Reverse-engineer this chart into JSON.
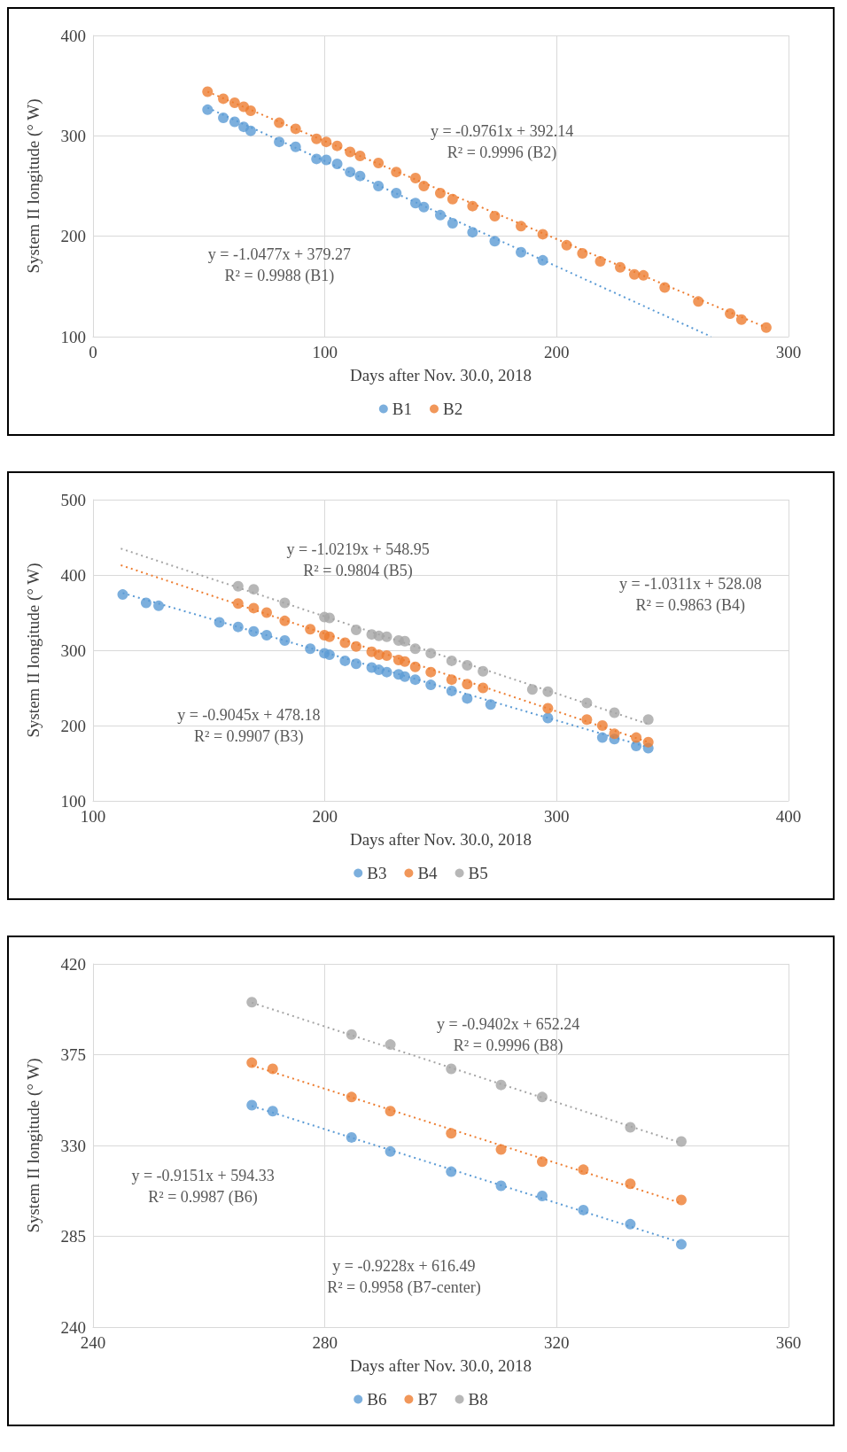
{
  "chart_data": [
    {
      "type": "scatter",
      "xlabel": "Days after Nov. 30.0, 2018",
      "ylabel": "System II longitude (° W)",
      "xlim": [
        0,
        300
      ],
      "xticks": [
        0,
        100,
        200,
        300
      ],
      "ylim": [
        100,
        400
      ],
      "yticks": [
        100,
        200,
        300,
        400
      ],
      "grid": true,
      "legend": "bottom",
      "marker": "circle",
      "series": [
        {
          "name": "B1",
          "color": "#5b9bd5",
          "x": [
            49.4,
            56.2,
            61.1,
            65,
            68,
            80.3,
            87.4,
            96.4,
            100.6,
            105.3,
            110.9,
            115.2,
            123.1,
            130.8,
            139.1,
            142.7,
            149.8,
            155.1,
            163.7,
            173.3,
            184.6,
            194
          ],
          "values": [
            326,
            318,
            314,
            309,
            305,
            294,
            289,
            277,
            276,
            272,
            264,
            260,
            250,
            243,
            233,
            229,
            221,
            213,
            204,
            195,
            184,
            176
          ]
        },
        {
          "name": "B2",
          "color": "#ed7d31",
          "x": [
            49.4,
            56.2,
            61.1,
            65,
            68,
            80.3,
            87.4,
            96.4,
            100.6,
            105.3,
            110.9,
            115.2,
            123.1,
            130.8,
            139.1,
            142.7,
            149.8,
            155.1,
            163.7,
            173.3,
            184.6,
            194,
            204.3,
            211.1,
            218.8,
            227.4,
            233.5,
            237.4,
            246.6,
            261.1,
            274.8,
            279.7,
            290.4
          ],
          "values": [
            344,
            337,
            333,
            329,
            325,
            313,
            307,
            297,
            294,
            290,
            284,
            280,
            273,
            264,
            258,
            250,
            243,
            237,
            230,
            220,
            210,
            202,
            191,
            183,
            175,
            169,
            162,
            161,
            149,
            135,
            123,
            117,
            109
          ]
        },
        {
          "type": "line",
          "color": "#5b9bd5",
          "line_style": "dotted",
          "marker": "none",
          "x": [
            49.4,
            266.6
          ],
          "values": [
            328,
            100
          ]
        },
        {
          "type": "line",
          "color": "#ed7d31",
          "line_style": "dotted",
          "marker": "none",
          "x": [
            49.4,
            290.4
          ],
          "values": [
            344,
            109
          ]
        }
      ],
      "annotations": [
        "y = -0.9761x + 392.14\nR² = 0.9996 (B2)",
        "y = -1.0477x + 379.27\nR² = 0.9988 (B1)"
      ]
    },
    {
      "type": "scatter",
      "xlabel": "Days after Nov. 30.0, 2018",
      "ylabel": "System II longitude (° W)",
      "xlim": [
        100,
        400
      ],
      "xticks": [
        100,
        200,
        300,
        400
      ],
      "ylim": [
        100,
        500
      ],
      "yticks": [
        100,
        200,
        300,
        400,
        500
      ],
      "grid": true,
      "legend": "bottom",
      "marker": "circle",
      "series": [
        {
          "name": "B3",
          "color": "#5b9bd5",
          "x": [
            112.8,
            122.9,
            128.3,
            154.5,
            162.6,
            169.3,
            174.9,
            182.7,
            193.7,
            199.8,
            202,
            208.7,
            213.5,
            220.2,
            223.3,
            226.7,
            231.8,
            234.5,
            239,
            245.7,
            254.7,
            261.4,
            271.5,
            296.2,
            319.7,
            324.9,
            334.3,
            339.5
          ],
          "values": [
            374,
            363,
            359,
            337,
            331,
            325,
            320,
            313,
            302,
            296,
            294,
            286,
            282,
            277,
            274,
            271,
            268,
            265,
            261,
            254,
            246,
            236,
            228,
            210,
            184,
            182,
            173,
            170
          ]
        },
        {
          "name": "B4",
          "color": "#ed7d31",
          "x": [
            162.6,
            169.3,
            174.9,
            182.7,
            193.7,
            199.8,
            202,
            208.7,
            213.5,
            220.2,
            223.3,
            226.7,
            231.8,
            234.5,
            239,
            245.7,
            254.7,
            261.4,
            268.2,
            296.2,
            313,
            319.7,
            324.9,
            334.3,
            339.5
          ],
          "values": [
            362,
            356,
            350,
            339,
            328,
            320,
            318,
            310,
            305,
            298,
            294,
            293,
            287,
            285,
            278,
            271,
            261,
            255,
            250,
            223,
            208,
            200,
            189,
            184,
            178
          ]
        },
        {
          "name": "B5",
          "color": "#a5a5a5",
          "x": [
            162.6,
            169.3,
            182.7,
            199.8,
            202,
            213.5,
            220.2,
            223.3,
            226.7,
            231.8,
            234.5,
            239,
            245.7,
            254.7,
            261.4,
            268.2,
            289.5,
            296.2,
            313,
            324.9,
            339.5
          ],
          "values": [
            385,
            381,
            363,
            344,
            343,
            327,
            321,
            319,
            318,
            313,
            312,
            302,
            296,
            286,
            280,
            272,
            248,
            245,
            230,
            217,
            208
          ]
        },
        {
          "type": "line",
          "color": "#5b9bd5",
          "line_style": "dotted",
          "marker": "none",
          "x": [
            112.8,
            339.5
          ],
          "values": [
            376,
            171
          ]
        },
        {
          "type": "line",
          "color": "#ed7d31",
          "line_style": "dotted",
          "marker": "none",
          "x": [
            112,
            339.5
          ],
          "values": [
            413,
            178
          ]
        },
        {
          "type": "line",
          "color": "#a5a5a5",
          "line_style": "dotted",
          "marker": "none",
          "x": [
            112,
            339.5
          ],
          "values": [
            435,
            202
          ]
        }
      ],
      "annotations": [
        "y = -1.0219x + 548.95\nR² = 0.9804 (B5)",
        "y = -1.0311x + 528.08\nR² = 0.9863 (B4)",
        "y = -0.9045x + 478.18\nR² = 0.9907 (B3)"
      ]
    },
    {
      "type": "scatter",
      "xlabel": "Days after Nov. 30.0, 2018",
      "ylabel": "System II longitude (° W)",
      "xlim": [
        240,
        360
      ],
      "xticks": [
        240,
        280,
        320,
        360
      ],
      "ylim": [
        240,
        420
      ],
      "yticks": [
        240,
        285,
        330,
        375,
        420
      ],
      "grid": true,
      "legend": "bottom",
      "marker": "circle",
      "series": [
        {
          "name": "B6",
          "color": "#5b9bd5",
          "x": [
            267.4,
            271.0,
            284.6,
            291.3,
            301.8,
            310.4,
            317.5,
            324.6,
            332.7,
            341.5
          ],
          "values": [
            350,
            347,
            334,
            327,
            317,
            310,
            305,
            298,
            291,
            281
          ]
        },
        {
          "name": "B7",
          "color": "#ed7d31",
          "x": [
            267.4,
            271.0,
            284.6,
            291.3,
            301.8,
            310.4,
            317.5,
            324.6,
            332.7,
            341.5
          ],
          "values": [
            371,
            368,
            354,
            347,
            336,
            328,
            322,
            318,
            311,
            303
          ]
        },
        {
          "name": "B8",
          "color": "#a5a5a5",
          "x": [
            267.4,
            284.6,
            291.3,
            301.8,
            310.4,
            317.5,
            332.7,
            341.5
          ],
          "values": [
            401,
            385,
            380,
            368,
            360,
            354,
            339,
            332
          ]
        },
        {
          "type": "line",
          "color": "#5b9bd5",
          "line_style": "dotted",
          "marker": "none",
          "x": [
            267.4,
            341.5
          ],
          "values": [
            349.6,
            281.8
          ]
        },
        {
          "type": "line",
          "color": "#ed7d31",
          "line_style": "dotted",
          "marker": "none",
          "x": [
            267.4,
            341.5
          ],
          "values": [
            369.7,
            301.4
          ]
        },
        {
          "type": "line",
          "color": "#a5a5a5",
          "line_style": "dotted",
          "marker": "none",
          "x": [
            267.4,
            341.5
          ],
          "values": [
            400.8,
            331.2
          ]
        }
      ],
      "annotations": [
        "y = -0.9402x + 652.24\nR² = 0.9996 (B8)",
        "y = -0.9151x + 594.33\nR² = 0.9987 (B6)",
        "y = -0.9228x + 616.49\nR² = 0.9958 (B7-center)"
      ]
    }
  ]
}
